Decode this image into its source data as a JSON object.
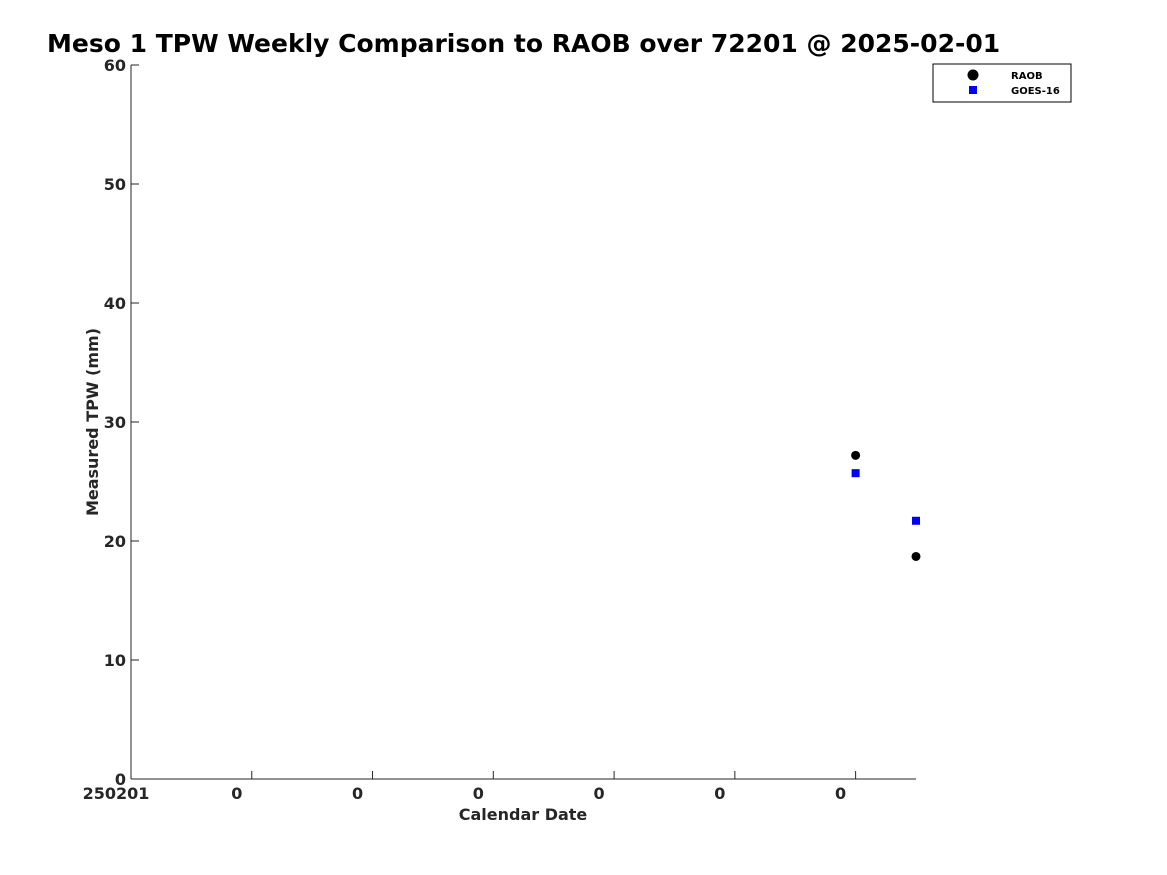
{
  "chart_data": {
    "type": "scatter",
    "title": "Meso 1 TPW Weekly Comparison to RAOB over 72201 @ 2025-02-01",
    "xlabel": "Calendar Date",
    "ylabel": "Measured TPW (mm)",
    "ylim": [
      0,
      60
    ],
    "yticks": [
      0,
      10,
      20,
      30,
      40,
      50,
      60
    ],
    "xlim": [
      0,
      6.5
    ],
    "xticks": [
      0,
      1,
      2,
      3,
      4,
      5,
      6
    ],
    "xtick_labels": [
      "250201",
      "0",
      "0",
      "0",
      "0",
      "0",
      "0"
    ],
    "grid": false,
    "legend_position": "top-right",
    "series": [
      {
        "name": "RAOB",
        "marker": "circle",
        "color": "#000000",
        "x": [
          6.0,
          6.5
        ],
        "y": [
          27.2,
          18.7
        ]
      },
      {
        "name": "GOES-16",
        "marker": "square",
        "color": "#0000ff",
        "x": [
          6.0,
          6.5
        ],
        "y": [
          25.7,
          21.7
        ]
      }
    ]
  }
}
